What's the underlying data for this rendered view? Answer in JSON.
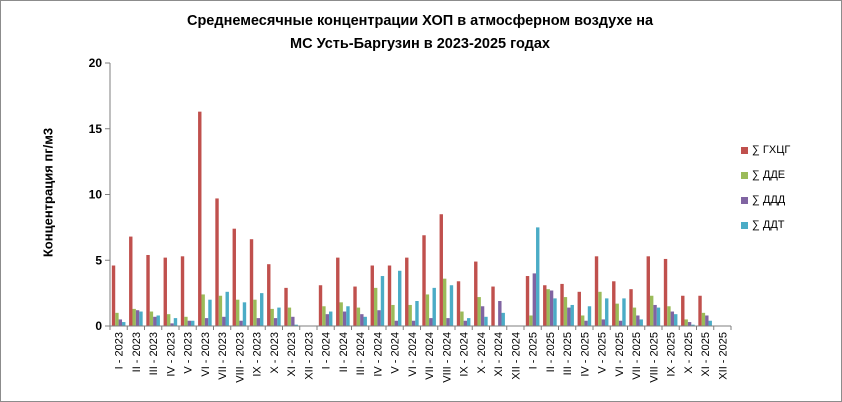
{
  "chart_data": {
    "type": "bar",
    "title_line1": "Среднемесячные  концентрации  ХОП в атмосферном  воздухе на",
    "title_line2": "МС  Усть-Баргузин  в 2023-2025 годах",
    "ylabel": "Концентрация пг/м3",
    "xlabel": "",
    "ylim": [
      0,
      20
    ],
    "yticks": [
      "0",
      "5",
      "10",
      "15",
      "20"
    ],
    "grid": false,
    "legend_position": "right",
    "categories": [
      "I - 2023",
      "II - 2023",
      "III - 2023",
      "IV - 2023",
      "V - 2023",
      "VI - 2023",
      "VII - 2023",
      "VIII - 2023",
      "IX - 2023",
      "X - 2023",
      "XI - 2023",
      "XII - 2023",
      "I - 2024",
      "II - 2024",
      "III - 2024",
      "IV - 2024",
      "V - 2024",
      "VI - 2024",
      "VII - 2024",
      "VIII - 2024",
      "IX - 2024",
      "X - 2024",
      "XI - 2024",
      "XII - 2024",
      "I - 2025",
      "II - 2025",
      "III - 2025",
      "IV - 2025",
      "V - 2025",
      "VI - 2025",
      "VII - 2025",
      "VIII - 2025",
      "IX - 2025",
      "X - 2025",
      "XI - 2025",
      "XII - 2025"
    ],
    "series": [
      {
        "name": "∑ ГХЦГ",
        "color": "#c0504d",
        "values": [
          4.6,
          6.8,
          5.4,
          5.2,
          5.3,
          16.3,
          9.7,
          7.4,
          6.6,
          4.7,
          2.9,
          0,
          3.1,
          5.2,
          3.0,
          4.6,
          4.6,
          5.2,
          6.9,
          8.5,
          3.4,
          4.9,
          3.0,
          0,
          3.8,
          3.1,
          3.2,
          2.6,
          5.3,
          3.4,
          2.8,
          5.3,
          5.1,
          2.3,
          2.3,
          0
        ]
      },
      {
        "name": "∑ ДДЕ",
        "color": "#9bbb59",
        "values": [
          1.0,
          1.3,
          1.1,
          0.9,
          0.7,
          2.4,
          2.3,
          2.0,
          2.0,
          1.3,
          1.4,
          0,
          1.5,
          1.8,
          1.4,
          2.9,
          1.6,
          1.6,
          2.4,
          3.6,
          1.1,
          2.2,
          0,
          0,
          0.8,
          2.8,
          2.2,
          0.8,
          2.6,
          1.7,
          1.4,
          2.3,
          1.5,
          0.5,
          1.0,
          0
        ]
      },
      {
        "name": "∑ ДДД",
        "color": "#8064a2",
        "values": [
          0.5,
          1.2,
          0.7,
          0.2,
          0.4,
          0.6,
          0.7,
          0.4,
          0.6,
          0.6,
          0.7,
          0,
          0.9,
          1.1,
          0.9,
          1.2,
          0.4,
          0.4,
          0.6,
          0.6,
          0.4,
          1.5,
          1.9,
          0,
          4.0,
          2.7,
          1.4,
          0.4,
          0.5,
          0.4,
          0.8,
          1.6,
          1.1,
          0.3,
          0.8,
          0
        ]
      },
      {
        "name": "∑ ДДТ",
        "color": "#4bacc6",
        "values": [
          0.3,
          1.1,
          0.8,
          0.6,
          0.4,
          2.0,
          2.6,
          1.8,
          2.5,
          1.4,
          0.1,
          0,
          1.1,
          1.5,
          0.7,
          3.8,
          4.2,
          1.9,
          2.9,
          3.1,
          0.6,
          0.7,
          1.0,
          0,
          7.5,
          2.1,
          1.6,
          1.5,
          2.1,
          2.1,
          0.5,
          1.4,
          0.9,
          0.1,
          0.4,
          0
        ]
      }
    ]
  }
}
